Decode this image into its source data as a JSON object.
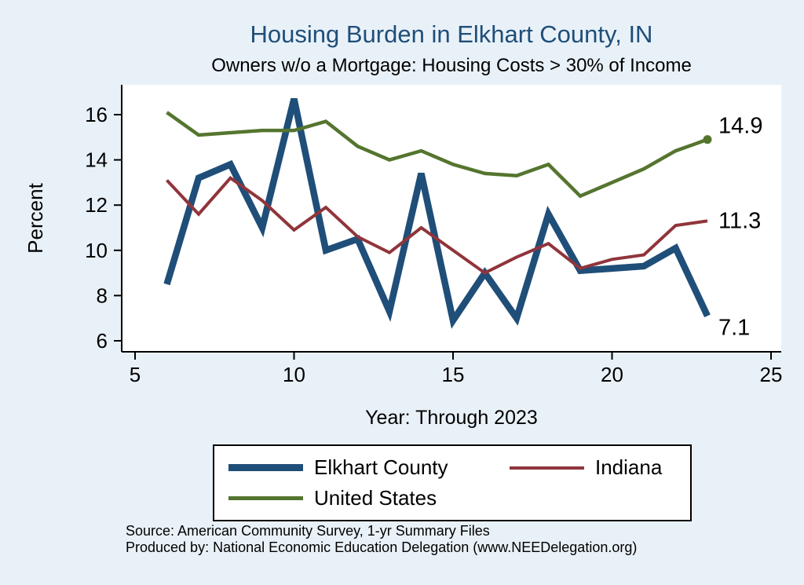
{
  "chart_data": {
    "type": "line",
    "title": "Housing Burden in Elkhart County, IN",
    "subtitle": "Owners w/o a Mortgage: Housing Costs > 30% of Income",
    "xlabel": "Year: Through 2023",
    "ylabel": "Percent",
    "xlim": [
      5,
      25
    ],
    "ylim": [
      5.5,
      17.3
    ],
    "x_ticks": [
      "5",
      "10",
      "15",
      "20",
      "25"
    ],
    "y_ticks": [
      "6",
      "8",
      "10",
      "12",
      "14",
      "16"
    ],
    "grid": false,
    "legend_position": "bottom-boxed",
    "x": [
      6,
      7,
      8,
      9,
      10,
      11,
      12,
      13,
      14,
      15,
      16,
      17,
      18,
      19,
      20,
      21,
      22,
      23
    ],
    "series": [
      {
        "name": "Elkhart County",
        "color": "#1f4e79",
        "width": 8.5,
        "values": [
          8.5,
          13.2,
          13.8,
          11.0,
          16.7,
          10.0,
          10.5,
          7.3,
          13.4,
          6.9,
          9.0,
          7.0,
          11.6,
          9.1,
          9.2,
          9.3,
          10.1,
          7.1
        ],
        "end_label": "7.1",
        "end_label_dy": 24,
        "end_marker": false
      },
      {
        "name": "Indiana",
        "color": "#90353b",
        "width": 4,
        "values": [
          13.1,
          11.6,
          13.2,
          12.2,
          10.9,
          11.9,
          10.6,
          9.9,
          11.0,
          10.0,
          9.0,
          9.7,
          10.3,
          9.2,
          9.6,
          9.8,
          11.1,
          11.3
        ],
        "end_label": "11.3",
        "end_label_dy": 9,
        "end_marker": false
      },
      {
        "name": "United States",
        "color": "#55752f",
        "width": 4.5,
        "values": [
          16.1,
          15.1,
          15.2,
          15.3,
          15.3,
          15.7,
          14.6,
          14.0,
          14.4,
          13.8,
          13.4,
          13.3,
          13.8,
          12.4,
          13.0,
          13.6,
          14.4,
          14.9
        ],
        "end_label": "14.9",
        "end_label_dy": -8,
        "end_marker": true
      }
    ]
  },
  "colors": {
    "background": "#e9f1f8",
    "plot_background": "#ffffff",
    "title": "#1f4e79",
    "axis": "#000000",
    "text": "#000000"
  },
  "legend": {
    "items": [
      "Elkhart County",
      "Indiana",
      "United States"
    ]
  },
  "source": {
    "line1": "Source: American Community Survey, 1-yr Summary Files",
    "line2": "Produced by: National Economic Education Delegation (www.NEEDelegation.org)"
  }
}
